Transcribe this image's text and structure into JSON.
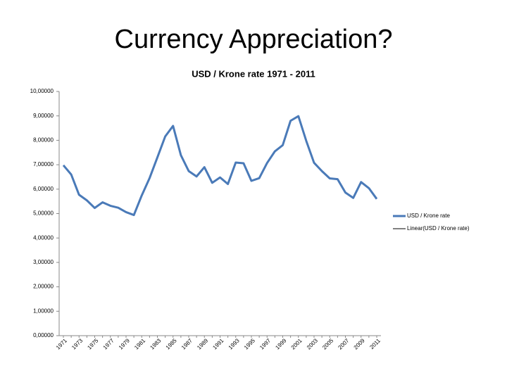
{
  "slide_title": "Currency Appreciation?",
  "chart_data": {
    "type": "line",
    "title": "USD / Krone rate 1971 - 2011",
    "categories": [
      "1971",
      null,
      "1973",
      null,
      "1975",
      null,
      "1977",
      null,
      "1979",
      null,
      "1981",
      null,
      "1983",
      null,
      "1985",
      null,
      "1987",
      null,
      "1989",
      null,
      "1991",
      null,
      "1993",
      null,
      "1995",
      null,
      "1997",
      null,
      "1999",
      null,
      "2001",
      null,
      "2003",
      null,
      "2005",
      null,
      "2007",
      null,
      "2009",
      null,
      "2011"
    ],
    "series": [
      {
        "name": "USD / Krone rate",
        "color": "#4a7ab8",
        "values": [
          6.98,
          6.6,
          5.77,
          5.54,
          5.23,
          5.46,
          5.32,
          5.24,
          5.06,
          4.94,
          5.74,
          6.45,
          7.3,
          8.16,
          8.59,
          7.39,
          6.74,
          6.52,
          6.9,
          6.26,
          6.48,
          6.21,
          7.09,
          7.06,
          6.34,
          6.45,
          7.07,
          7.55,
          7.8,
          8.8,
          8.99,
          7.98,
          7.08,
          6.74,
          6.44,
          6.41,
          5.86,
          5.64,
          6.29,
          6.04,
          5.6
        ]
      }
    ],
    "trendline": {
      "name": "Linear(USD / Krone rate)",
      "color": "#000000"
    },
    "ylim": [
      0,
      10
    ],
    "yticks": [
      {
        "value": 0,
        "label": "0,00000"
      },
      {
        "value": 1,
        "label": "1,00000"
      },
      {
        "value": 2,
        "label": "2,00000"
      },
      {
        "value": 3,
        "label": "3,00000"
      },
      {
        "value": 4,
        "label": "4,00000"
      },
      {
        "value": 5,
        "label": "5,00000"
      },
      {
        "value": 6,
        "label": "6,00000"
      },
      {
        "value": 7,
        "label": "7,00000"
      },
      {
        "value": 8,
        "label": "8,00000"
      },
      {
        "value": 9,
        "label": "9,00000"
      },
      {
        "value": 10,
        "label": "10,00000"
      }
    ],
    "grid": false
  }
}
